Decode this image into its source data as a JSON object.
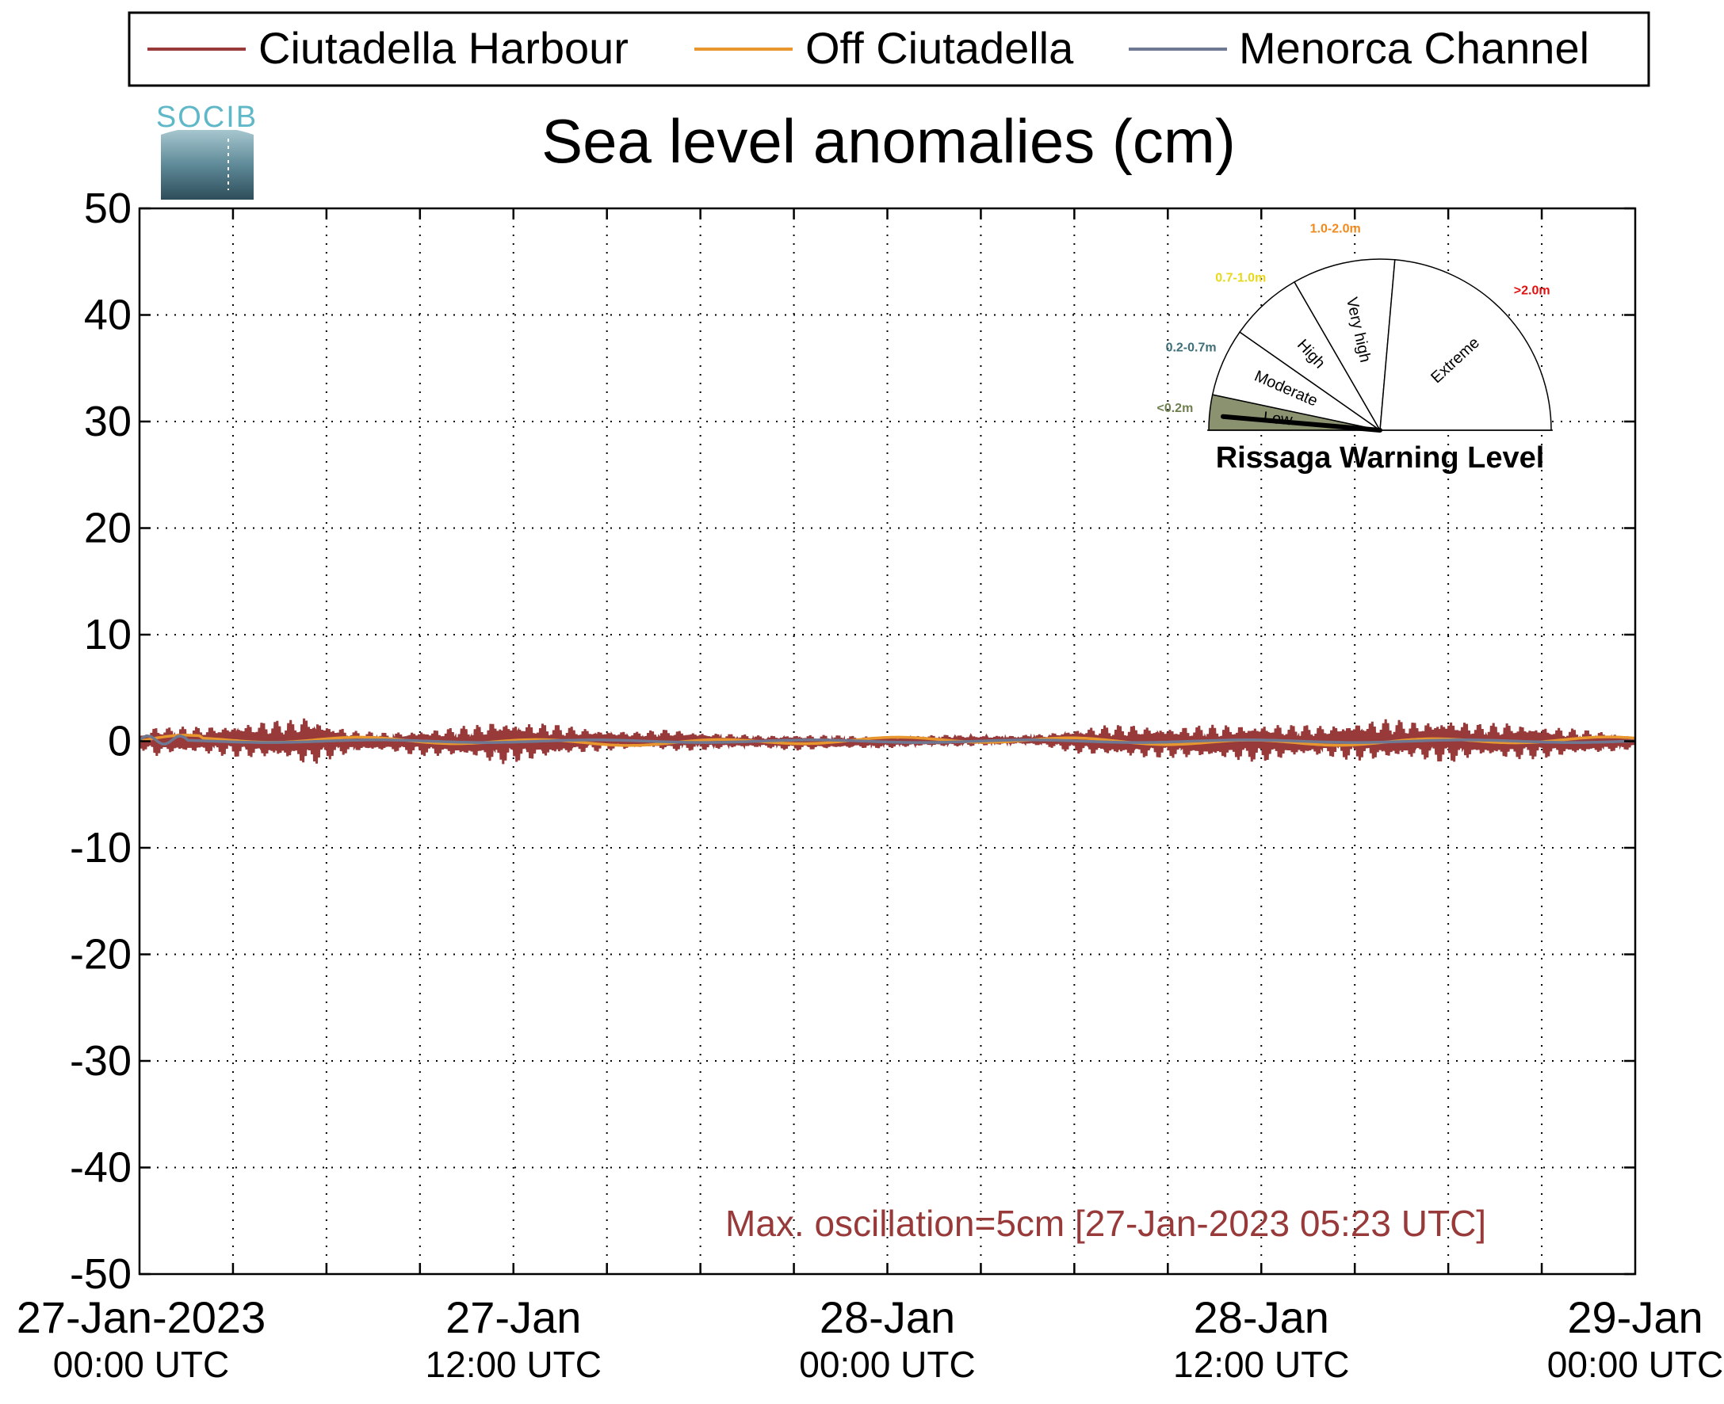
{
  "logo_text": "SOCIB",
  "chart_data": {
    "type": "line",
    "title": "Sea level anomalies (cm)",
    "xlabel": "",
    "ylabel": "",
    "ylim": [
      -50,
      50
    ],
    "yticks": [
      50,
      40,
      30,
      20,
      10,
      0,
      -10,
      -20,
      -30,
      -40,
      -50
    ],
    "ytick_labels": [
      "50",
      "40",
      "30",
      "20",
      "10",
      "0",
      "-10",
      "-20",
      "-30",
      "-40",
      "-50"
    ],
    "xlim_hours": [
      0,
      48
    ],
    "x_start": "27-Jan-2023 00:00 UTC",
    "x_end": "29-Jan-2023 00:00 UTC",
    "xticks": [
      {
        "hour": 0,
        "line1": "27-Jan-2023",
        "line2": "00:00 UTC"
      },
      {
        "hour": 12,
        "line1": "27-Jan",
        "line2": "12:00 UTC"
      },
      {
        "hour": 24,
        "line1": "28-Jan",
        "line2": "00:00 UTC"
      },
      {
        "hour": 36,
        "line1": "28-Jan",
        "line2": "12:00 UTC"
      },
      {
        "hour": 48,
        "line1": "29-Jan",
        "line2": "00:00 UTC"
      }
    ],
    "grid": true,
    "legend_position": "top",
    "series": [
      {
        "name": "Ciutadella Harbour",
        "color": "#983a3a",
        "envelope": {
          "hours": [
            0,
            0.5,
            1,
            2,
            3,
            4,
            5,
            5.4,
            6,
            7,
            8,
            9,
            10,
            11,
            11.5,
            12,
            13,
            14,
            15,
            16,
            17,
            18,
            19,
            20,
            21,
            22,
            23,
            24,
            25,
            26,
            27,
            28,
            29,
            30,
            31,
            32,
            33,
            34,
            35,
            36,
            37,
            38,
            39,
            40,
            41,
            42,
            43,
            44,
            45,
            46,
            47,
            48
          ],
          "amplitude": [
            0.7,
            1.5,
            1.3,
            1.3,
            1.6,
            1.8,
            2.0,
            2.5,
            1.8,
            1.0,
            0.9,
            1.3,
            1.4,
            1.7,
            2.2,
            2.0,
            1.7,
            1.3,
            1.0,
            0.8,
            1.1,
            0.9,
            0.7,
            0.6,
            0.8,
            0.7,
            0.6,
            0.6,
            0.5,
            0.6,
            0.5,
            0.4,
            0.6,
            1.2,
            1.5,
            1.6,
            1.5,
            1.6,
            1.7,
            1.9,
            1.6,
            1.5,
            1.9,
            2.0,
            1.8,
            2.2,
            1.6,
            1.8,
            1.6,
            1.3,
            1.0,
            0.6
          ]
        }
      },
      {
        "name": "Off Ciutadella",
        "color": "#e8962e"
      },
      {
        "name": "Menorca Channel",
        "color": "#6f7892"
      }
    ],
    "annotation": "Max. oscillation=5cm [27-Jan-2023 05:23 UTC]"
  },
  "gauge": {
    "title": "Rissaga Warning Level",
    "current_level": "Low",
    "sectors": [
      {
        "name": "Low",
        "range": "<0.2m",
        "range_color": "#6f7f4f",
        "fill": "#8a9270"
      },
      {
        "name": "Moderate",
        "range": "0.2-0.7m",
        "range_color": "#3e6e78",
        "fill": "#ffffff"
      },
      {
        "name": "High",
        "range": "0.7-1.0m",
        "range_color": "#e8d81a",
        "fill": "#ffffff"
      },
      {
        "name": "Very high",
        "range": "1.0-2.0m",
        "range_color": "#f08a1e",
        "fill": "#ffffff"
      },
      {
        "name": "Extreme",
        "range": ">2.0m",
        "range_color": "#e01010",
        "fill": "#ffffff"
      }
    ]
  }
}
